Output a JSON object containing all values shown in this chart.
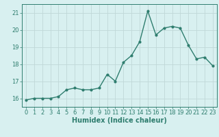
{
  "x": [
    0,
    1,
    2,
    3,
    4,
    5,
    6,
    7,
    8,
    9,
    10,
    11,
    12,
    13,
    14,
    15,
    16,
    17,
    18,
    19,
    20,
    21,
    22,
    23
  ],
  "y": [
    15.9,
    16.0,
    16.0,
    16.0,
    16.1,
    16.5,
    16.6,
    16.5,
    16.5,
    16.6,
    17.4,
    17.0,
    18.1,
    18.5,
    19.3,
    21.1,
    19.7,
    20.1,
    20.2,
    20.1,
    19.1,
    18.3,
    18.4,
    17.9
  ],
  "line_color": "#2e7d6e",
  "marker": "o",
  "marker_size": 2.0,
  "line_width": 1.0,
  "bg_color": "#d8f0f0",
  "grid_color": "#c0d8d8",
  "xlabel": "Humidex (Indice chaleur)",
  "xlabel_fontsize": 7,
  "tick_fontsize": 6,
  "ylim": [
    15.5,
    21.5
  ],
  "xlim": [
    -0.5,
    23.5
  ],
  "yticks": [
    16,
    17,
    18,
    19,
    20,
    21
  ],
  "xticks": [
    0,
    1,
    2,
    3,
    4,
    5,
    6,
    7,
    8,
    9,
    10,
    11,
    12,
    13,
    14,
    15,
    16,
    17,
    18,
    19,
    20,
    21,
    22,
    23
  ]
}
